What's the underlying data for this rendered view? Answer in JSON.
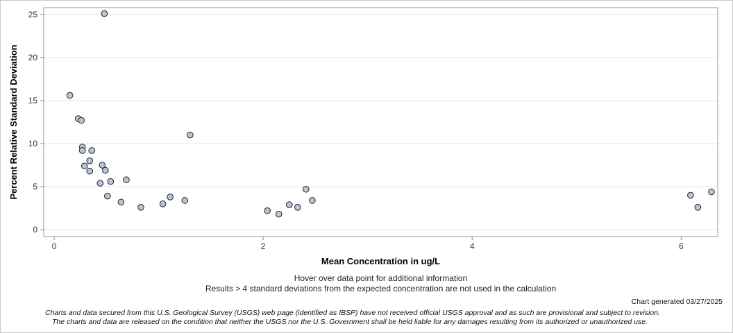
{
  "chart_data": {
    "type": "scatter",
    "xlabel": "Mean Concentration in ug/L",
    "ylabel": "Percent Relative Standard Deviation",
    "xlim": [
      -0.1,
      6.35
    ],
    "ylim": [
      -0.8,
      25.8
    ],
    "xticks": [
      0,
      2,
      4,
      6
    ],
    "yticks": [
      0,
      5,
      10,
      15,
      20,
      25
    ],
    "grid": true,
    "marker_fill": "#b8c4d8",
    "marker_stroke": "#222222",
    "points": [
      {
        "x": 0.48,
        "y": 25.1
      },
      {
        "x": 0.15,
        "y": 15.6
      },
      {
        "x": 0.23,
        "y": 12.9
      },
      {
        "x": 0.26,
        "y": 12.7
      },
      {
        "x": 0.27,
        "y": 9.6
      },
      {
        "x": 0.27,
        "y": 9.2
      },
      {
        "x": 0.36,
        "y": 9.2
      },
      {
        "x": 0.34,
        "y": 8.0
      },
      {
        "x": 0.29,
        "y": 7.4
      },
      {
        "x": 0.46,
        "y": 7.5
      },
      {
        "x": 0.49,
        "y": 6.9
      },
      {
        "x": 0.34,
        "y": 6.8
      },
      {
        "x": 0.54,
        "y": 5.6
      },
      {
        "x": 0.44,
        "y": 5.4
      },
      {
        "x": 0.69,
        "y": 5.8
      },
      {
        "x": 0.51,
        "y": 3.9
      },
      {
        "x": 0.64,
        "y": 3.2
      },
      {
        "x": 0.83,
        "y": 2.6
      },
      {
        "x": 1.04,
        "y": 3.0
      },
      {
        "x": 1.11,
        "y": 3.8
      },
      {
        "x": 1.25,
        "y": 3.4
      },
      {
        "x": 1.3,
        "y": 11.0
      },
      {
        "x": 2.04,
        "y": 2.2
      },
      {
        "x": 2.15,
        "y": 1.8
      },
      {
        "x": 2.25,
        "y": 2.9
      },
      {
        "x": 2.33,
        "y": 2.6
      },
      {
        "x": 2.41,
        "y": 4.7
      },
      {
        "x": 2.47,
        "y": 3.4
      },
      {
        "x": 6.09,
        "y": 4.0
      },
      {
        "x": 6.16,
        "y": 2.6
      },
      {
        "x": 6.29,
        "y": 4.4
      }
    ]
  },
  "notes": {
    "hover": "Hover over data point for additional information",
    "results": "Results > 4 standard deviations from the expected concentration are not used in the calculation",
    "generated": "Chart generated 03/27/2025",
    "disclaimer_line1": "Charts and data secured from this U.S. Geological Survey (USGS) web page (identified as IBSP) have not received official USGS approval and as such are provisional and subject to revision.",
    "disclaimer_line2": "The charts and data are released on the condition that neither the USGS nor the U.S. Government shall be held liable for any damages resulting from its authorized or unauthorized use."
  }
}
